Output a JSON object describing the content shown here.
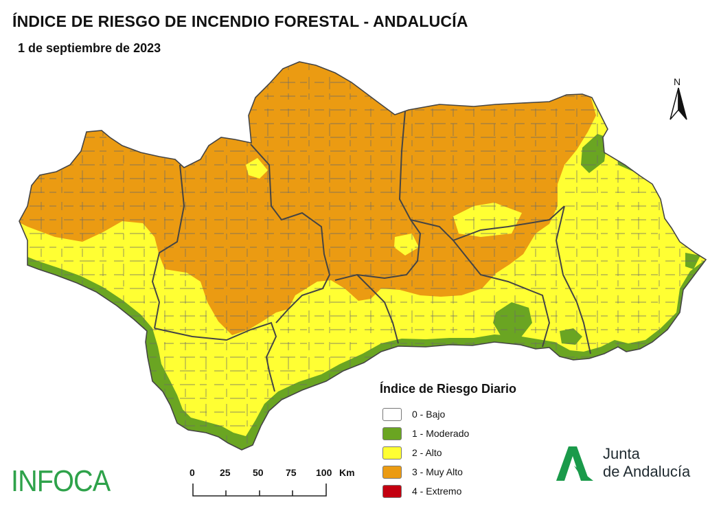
{
  "title": "ÍNDICE DE RIESGO DE INCENDIO FORESTAL - ANDALUCÍA",
  "date": "1 de septiembre de 2023",
  "north_label": "N",
  "legend": {
    "title": "Índice de Riesgo Diario",
    "items": [
      {
        "label": "0 - Bajo",
        "color": "#ffffff"
      },
      {
        "label": "1 - Moderado",
        "color": "#6aa522"
      },
      {
        "label": "2 - Alto",
        "color": "#ffff33"
      },
      {
        "label": "3 - Muy Alto",
        "color": "#eb9b12"
      },
      {
        "label": "4 - Extremo",
        "color": "#c30010"
      }
    ]
  },
  "scale": {
    "ticks": [
      "0",
      "25",
      "50",
      "75",
      "100"
    ],
    "unit": "Km"
  },
  "logos": {
    "infoca": "INFOCA",
    "junta_line1": "Junta",
    "junta_line2": "de Andalucía",
    "infoca_color": "#2ea24a",
    "junta_color": "#1a9a4a"
  },
  "colors": {
    "border": "#555555",
    "province_border": "#444444"
  }
}
